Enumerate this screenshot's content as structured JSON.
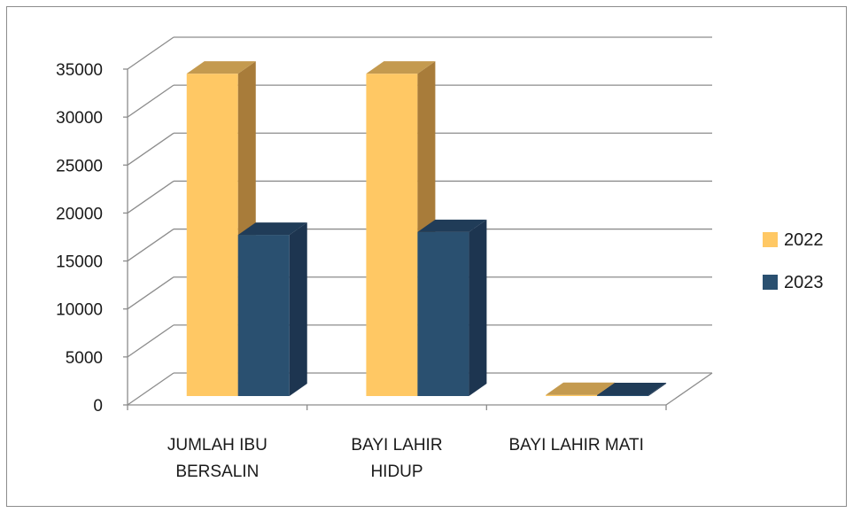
{
  "chart_data": {
    "type": "bar",
    "categories": [
      [
        "JUMLAH IBU",
        "BERSALIN"
      ],
      [
        "BAYI LAHIR",
        "HIDUP"
      ],
      [
        "BAYI LAHIR MATI"
      ]
    ],
    "series": [
      {
        "name": "2022",
        "values": [
          33600,
          33600,
          120
        ]
      },
      {
        "name": "2023",
        "values": [
          16800,
          17100,
          95
        ]
      }
    ],
    "ylim": [
      0,
      35000
    ],
    "yticks": [
      "0",
      "5000",
      "10000",
      "15000",
      "20000",
      "25000",
      "30000",
      "35000"
    ],
    "grid": true,
    "legend": "right",
    "three_d": true,
    "colors": {
      "2022": {
        "front": "#FFC864",
        "side": "#A87C3A",
        "top": "#C49A4F"
      },
      "2023": {
        "front": "#2A5070",
        "side": "#1D3550",
        "top": "#203C58"
      },
      "grid": "#8C8C8C"
    }
  }
}
